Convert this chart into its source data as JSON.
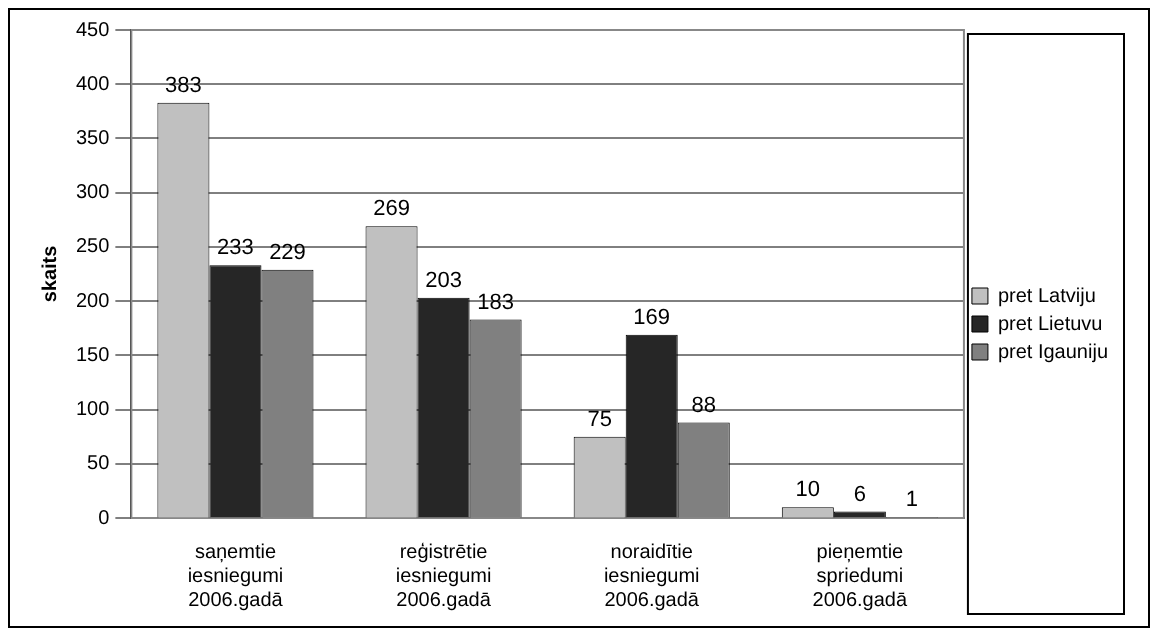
{
  "chart_data": {
    "type": "bar",
    "ylabel": "skaits",
    "categories": [
      "saņemtie iesniegumi 2006.gadā",
      "reģistrētie iesniegumi 2006.gadā",
      "noraidītie iesniegumi 2006.gadā",
      "pieņemtie spriedumi 2006.gadā"
    ],
    "series": [
      {
        "name": "pret Latviju",
        "color": "#c0c0c0",
        "values": [
          383,
          269,
          75,
          10
        ]
      },
      {
        "name": "pret Lietuvu",
        "color": "#262626",
        "values": [
          233,
          203,
          169,
          6
        ]
      },
      {
        "name": "pret Igauniju",
        "color": "#808080",
        "values": [
          229,
          183,
          88,
          1
        ]
      }
    ],
    "ylim": [
      0,
      450
    ],
    "yticks": [
      0,
      50,
      100,
      150,
      200,
      250,
      300,
      350,
      400,
      450
    ],
    "grid": "y",
    "legend": "right",
    "data_labels": true
  }
}
